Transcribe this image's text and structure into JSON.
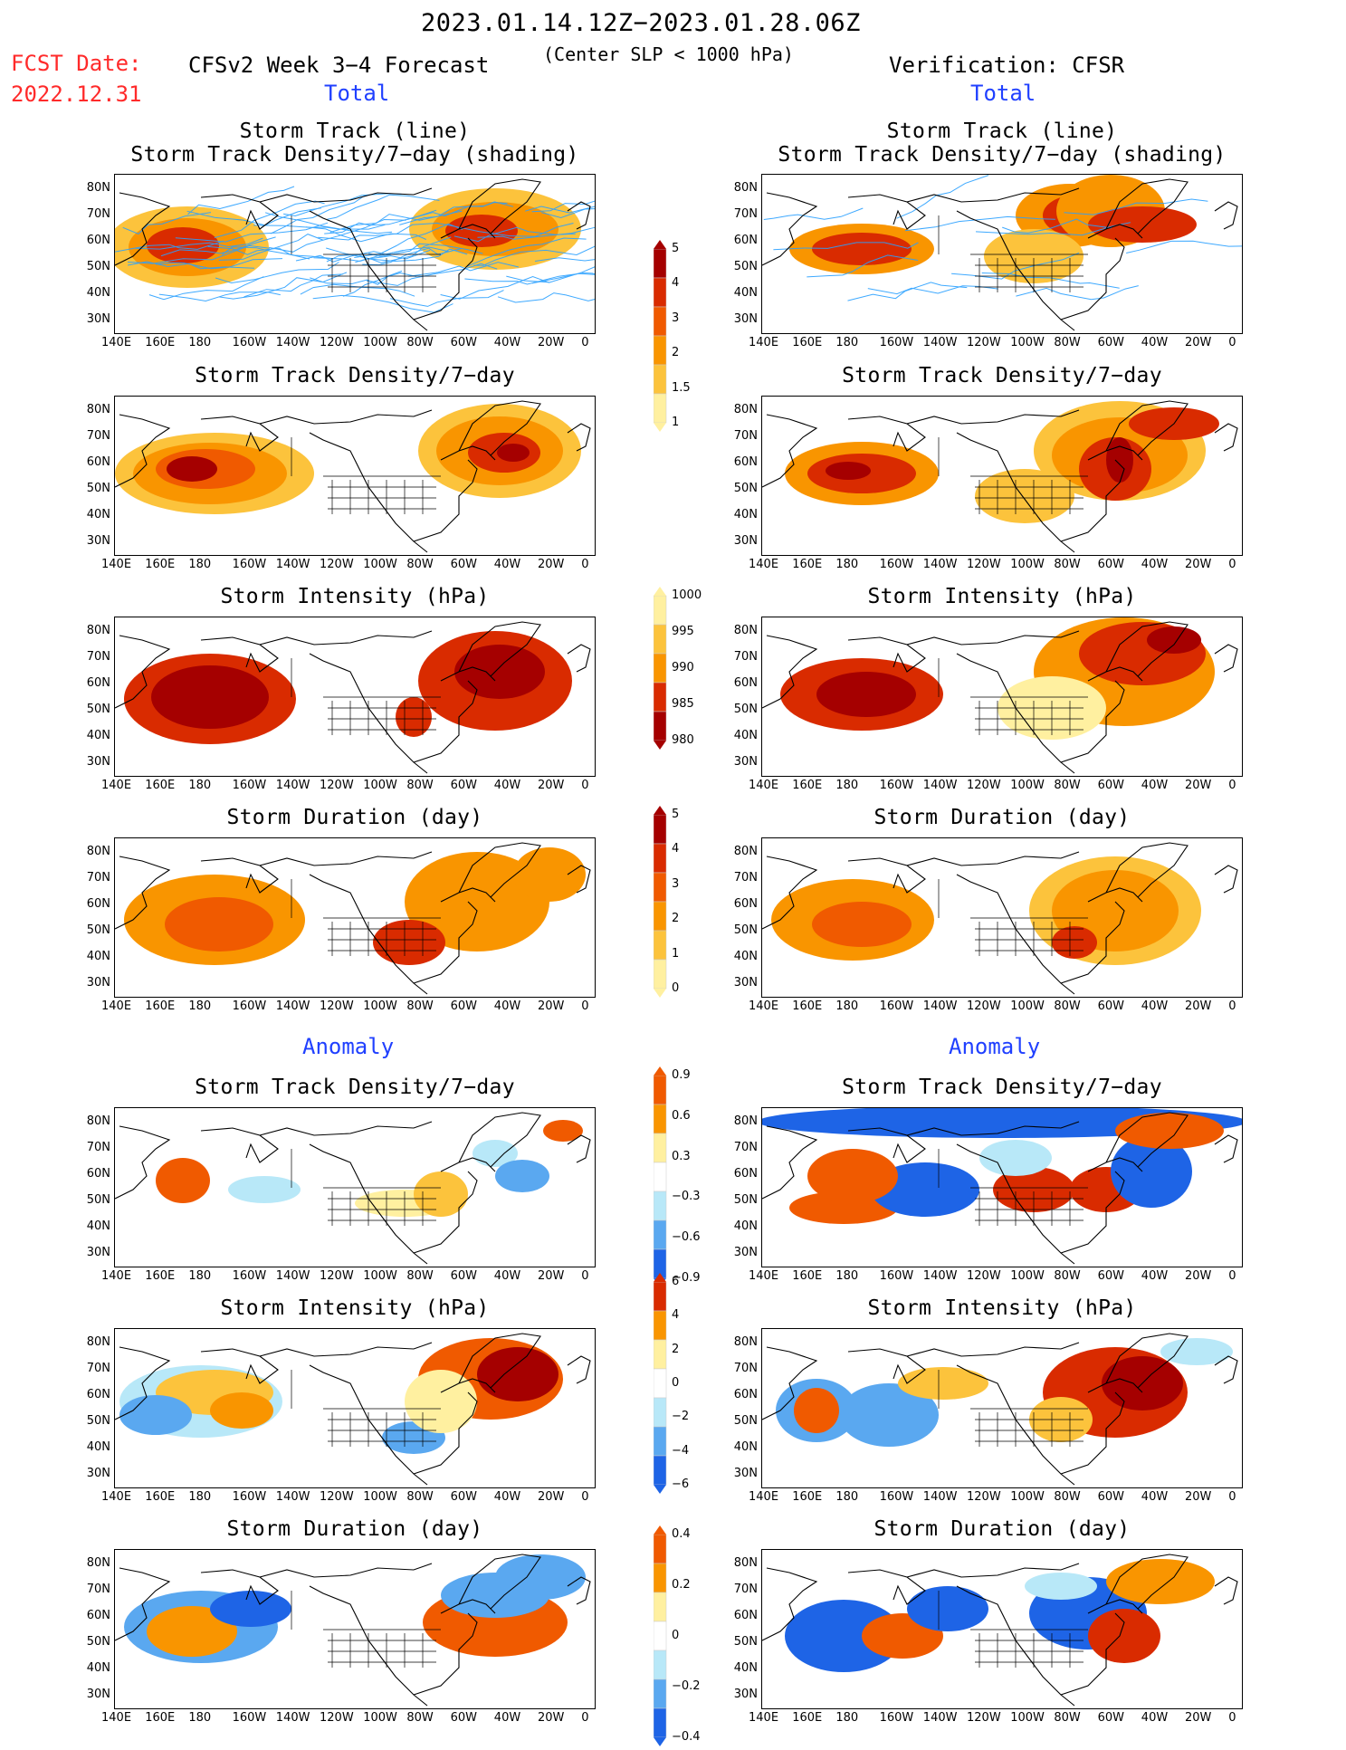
{
  "header": {
    "date_range": "2023.01.14.12Z−2023.01.28.06Z",
    "fcst_label": "FCST Date:",
    "fcst_date": "2022.12.31",
    "model": "CFSv2 Week 3−4 Forecast",
    "condition": "(Center SLP < 1000 hPa)",
    "verification": "Verification: CFSR",
    "total_left": "Total",
    "total_right": "Total",
    "anomaly_left": "Anomaly",
    "anomaly_right": "Anomaly"
  },
  "titles": {
    "track_line": "Storm Track (line)",
    "track_density_shading": "Storm Track Density/7−day (shading)",
    "track_density": "Storm Track Density/7−day",
    "intensity": "Storm Intensity (hPa)",
    "duration": "Storm Duration (day)"
  },
  "axes": {
    "lon_ticks": [
      "140E",
      "160E",
      "180",
      "160W",
      "140W",
      "120W",
      "100W",
      "80W",
      "60W",
      "40W",
      "20W",
      "0"
    ],
    "lat_ticks": [
      "80N",
      "70N",
      "60N",
      "50N",
      "40N",
      "30N"
    ]
  },
  "colorbars": {
    "density": [
      "5",
      "4",
      "3",
      "2",
      "1.5",
      "1"
    ],
    "intensity": [
      "1000",
      "995",
      "990",
      "985",
      "980"
    ],
    "duration": [
      "5",
      "4",
      "3",
      "2",
      "1",
      "0"
    ],
    "density_anom": [
      "0.9",
      "0.6",
      "0.3",
      "−0.3",
      "−0.6",
      "−0.9"
    ],
    "intensity_anom": [
      "6",
      "4",
      "2",
      "0",
      "−2",
      "−4",
      "−6"
    ],
    "duration_anom": [
      "0.4",
      "0.2",
      "0",
      "−0.2",
      "−0.4"
    ]
  },
  "colors": {
    "dark_red": "#a50000",
    "red": "#d92b00",
    "orange_red": "#f05a00",
    "orange": "#f99500",
    "light_orange": "#fcc33c",
    "pale_yellow": "#fff0a0",
    "light_blue": "#b8e8f8",
    "mid_blue": "#5aa8f0",
    "blue": "#1e64e6",
    "track_line": "#2aa0ff"
  }
}
